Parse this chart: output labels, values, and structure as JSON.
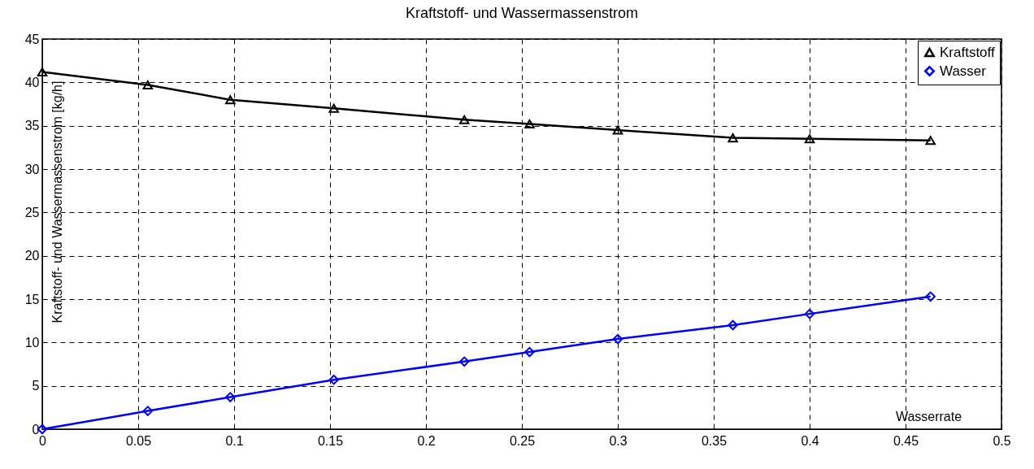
{
  "chart_data": {
    "type": "line",
    "title": "Kraftstoff- und Wassermassenstrom",
    "xlabel": "Wasserrate",
    "ylabel": "Kraftstoff- und Wassermassenstrom [kg/h]",
    "x": [
      0,
      0.055,
      0.098,
      0.152,
      0.22,
      0.254,
      0.3,
      0.36,
      0.4,
      0.463
    ],
    "series": [
      {
        "name": "Kraftstoff",
        "color": "#000000",
        "marker": "triangle",
        "values": [
          41.2,
          39.7,
          38.0,
          37.0,
          35.7,
          35.2,
          34.5,
          33.6,
          33.5,
          33.3
        ]
      },
      {
        "name": "Wasser",
        "color": "#0000ff",
        "marker": "diamond",
        "values": [
          0,
          2.1,
          3.7,
          5.7,
          7.8,
          8.9,
          10.4,
          12.0,
          13.3,
          15.3
        ]
      }
    ],
    "xlim": [
      0,
      0.5
    ],
    "xticks": [
      0,
      0.05,
      0.1,
      0.15,
      0.2,
      0.25,
      0.3,
      0.35,
      0.4,
      0.45,
      0.5
    ],
    "ylim": [
      0,
      45
    ],
    "yticks": [
      0,
      5,
      10,
      15,
      20,
      25,
      30,
      35,
      40,
      45
    ],
    "grid": true,
    "legend": "top right",
    "line_style": "solid"
  }
}
